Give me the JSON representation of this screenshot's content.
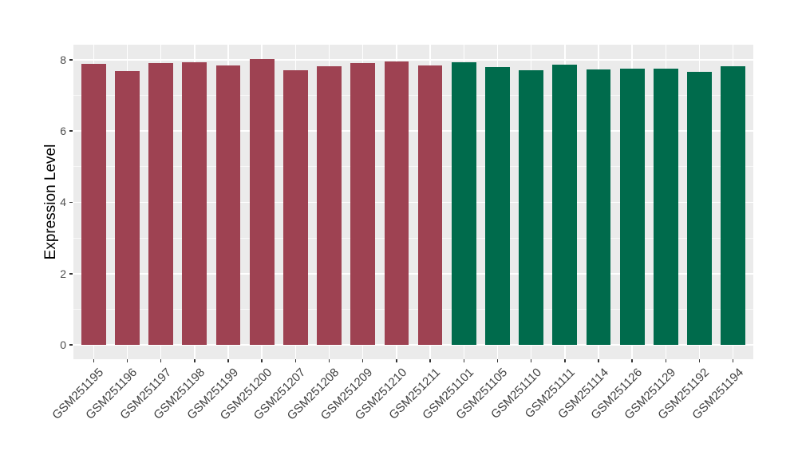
{
  "figure": {
    "background": "#FFFFFF",
    "panel_background": "#EBEBEB",
    "grid_major_color": "#FFFFFF",
    "grid_minor_color": "rgba(255,255,255,0.65)",
    "tick_color": "#333333",
    "axis_text_color": "#4D4D4D",
    "axis_title_color": "#000000"
  },
  "chart_data": {
    "type": "bar",
    "title": "",
    "xlabel": "",
    "ylabel": "Expression Level",
    "ylim": [
      -0.4,
      8.42
    ],
    "yticks": [
      0,
      2,
      4,
      6,
      8
    ],
    "yminor": [
      1,
      3,
      5,
      7
    ],
    "grid": true,
    "legend": "none",
    "bar_width_ratio": 0.73,
    "x_edge_padding": 0.6,
    "group_colors": {
      "left": "#9E4252",
      "right": "#006B4C"
    },
    "samples": [
      {
        "id": "GSM251195",
        "value": 7.88,
        "group": "left"
      },
      {
        "id": "GSM251196",
        "value": 7.68,
        "group": "left"
      },
      {
        "id": "GSM251197",
        "value": 7.9,
        "group": "left"
      },
      {
        "id": "GSM251198",
        "value": 7.92,
        "group": "left"
      },
      {
        "id": "GSM251199",
        "value": 7.83,
        "group": "left"
      },
      {
        "id": "GSM251200",
        "value": 8.02,
        "group": "left"
      },
      {
        "id": "GSM251207",
        "value": 7.71,
        "group": "left"
      },
      {
        "id": "GSM251208",
        "value": 7.81,
        "group": "left"
      },
      {
        "id": "GSM251209",
        "value": 7.91,
        "group": "left"
      },
      {
        "id": "GSM251210",
        "value": 7.94,
        "group": "left"
      },
      {
        "id": "GSM251211",
        "value": 7.84,
        "group": "left"
      },
      {
        "id": "GSM251101",
        "value": 7.92,
        "group": "right"
      },
      {
        "id": "GSM251105",
        "value": 7.8,
        "group": "right"
      },
      {
        "id": "GSM251110",
        "value": 7.7,
        "group": "right"
      },
      {
        "id": "GSM251111",
        "value": 7.85,
        "group": "right"
      },
      {
        "id": "GSM251114",
        "value": 7.72,
        "group": "right"
      },
      {
        "id": "GSM251126",
        "value": 7.75,
        "group": "right"
      },
      {
        "id": "GSM251129",
        "value": 7.75,
        "group": "right"
      },
      {
        "id": "GSM251192",
        "value": 7.66,
        "group": "right"
      },
      {
        "id": "GSM251194",
        "value": 7.81,
        "group": "right"
      }
    ]
  }
}
